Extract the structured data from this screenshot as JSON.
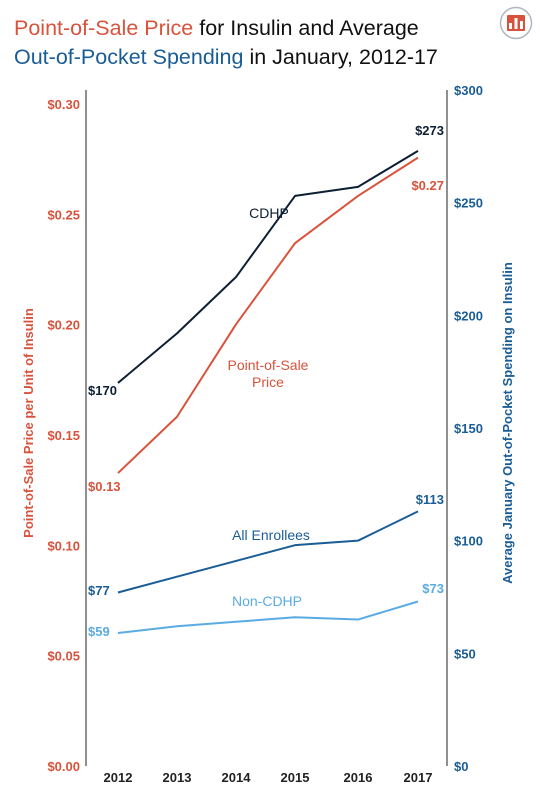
{
  "header": {
    "title_part1": "Point-of-Sale Price",
    "title_part2": " for Insulin and Average",
    "title_part3": "Out-of-Pocket Spending",
    "title_part4": " in January, 2012-17"
  },
  "colors": {
    "pos_price": "#d9533c",
    "cdhp": "#0d1f33",
    "all_enrollees": "#1a5d96",
    "non_cdhp": "#5aabe3",
    "axis_dark": "#111111"
  },
  "chart_data": {
    "type": "line",
    "x": [
      "2012",
      "2013",
      "2014",
      "2015",
      "2016",
      "2017"
    ],
    "y_left": {
      "label": "Point-of-Sale Price per Unit of Insulin",
      "range": [
        0,
        0.3
      ],
      "ticks": [
        "$0.00",
        "$0.05",
        "$0.10",
        "$0.15",
        "$0.20",
        "$0.25",
        "$0.30"
      ],
      "tick_values": [
        0,
        0.05,
        0.1,
        0.15,
        0.2,
        0.25,
        0.3
      ]
    },
    "y_right": {
      "label": "Average January Out-of-Pocket Spending on Insulin",
      "range": [
        0,
        300
      ],
      "ticks": [
        "$0",
        "$50",
        "$100",
        "$150",
        "$200",
        "$250",
        "$300"
      ],
      "tick_values": [
        0,
        50,
        100,
        150,
        200,
        250,
        300
      ]
    },
    "series": [
      {
        "name": "Point-of-Sale Price",
        "axis": "left",
        "color_key": "pos_price",
        "values": [
          0.13,
          0.155,
          0.196,
          0.232,
          0.253,
          0.27
        ],
        "start_label": "$0.13",
        "end_label": "$0.27",
        "series_label": [
          "Point-of-Sale",
          "Price"
        ]
      },
      {
        "name": "CDHP",
        "axis": "right",
        "color_key": "cdhp",
        "values": [
          170,
          192,
          217,
          253,
          257,
          273
        ],
        "start_label": "$170",
        "end_label": "$273",
        "series_label": [
          "CDHP"
        ]
      },
      {
        "name": "All Enrollees",
        "axis": "right",
        "color_key": "all_enrollees",
        "values": [
          77,
          84,
          91,
          98,
          100,
          113
        ],
        "start_label": "$77",
        "end_label": "$113",
        "series_label": [
          "All Enrollees"
        ]
      },
      {
        "name": "Non-CDHP",
        "axis": "right",
        "color_key": "non_cdhp",
        "values": [
          59,
          62,
          64,
          66,
          65,
          73
        ],
        "start_label": "$59",
        "end_label": "$73",
        "series_label": [
          "Non-CDHP"
        ]
      }
    ]
  }
}
